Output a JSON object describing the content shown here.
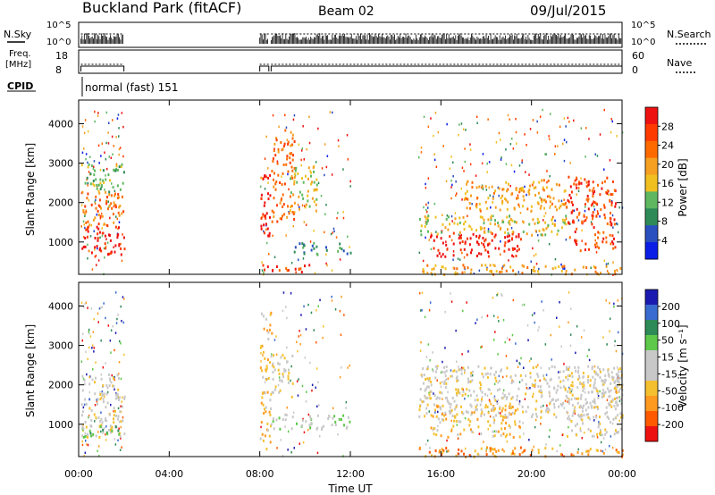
{
  "header": {
    "station": "Buckland Park (fitACF)",
    "beam": "Beam 02",
    "date": "09/Jul/2015"
  },
  "status_panels": {
    "nsky_label": "N.Sky",
    "nsky_ticks": [
      "10^5",
      "10^0"
    ],
    "nsearch_label": "N.Search",
    "freq_label_1": "Freq.",
    "freq_label_2": "[MHz]",
    "freq_ticks": [
      "18",
      "8"
    ],
    "nave_label": "Nave",
    "nave_ticks": [
      "60",
      "0"
    ],
    "cpid_label": "CPID",
    "cpid_text": "normal (fast) 151"
  },
  "colors": {
    "power_scale": [
      "#0a1ee6",
      "#2a4fbf",
      "#2e8b57",
      "#5fb860",
      "#f0c020",
      "#f5a020",
      "#ff6a00",
      "#ff3a00",
      "#ee1111"
    ],
    "velocity_scale": [
      "#ee1111",
      "#ff5a00",
      "#ff9a20",
      "#f5c030",
      "#c8c8c8",
      "#c8c8c8",
      "#5ec84a",
      "#2e8b57",
      "#3a6bd0",
      "#1a1ab0"
    ]
  },
  "chart_data": [
    {
      "type": "heatmap",
      "name": "power",
      "ylabel": "Slant Range [km]",
      "y_ticks": [
        "4000",
        "3000",
        "2000",
        "1000"
      ],
      "y_tick_values": [
        4000,
        3000,
        2000,
        1000
      ],
      "ylim": [
        180,
        4600
      ],
      "xlim": [
        0,
        24
      ],
      "colorbar_label": "Power [dB]",
      "colorbar_ticks": [
        "28",
        "24",
        "20",
        "16",
        "12",
        "8",
        "4"
      ],
      "colorbar_range": [
        0,
        32
      ],
      "blobs": [
        {
          "t0": 0.1,
          "t1": 2.0,
          "r0": 700,
          "r1": 1450,
          "level": 8
        },
        {
          "t0": 0.1,
          "t1": 2.0,
          "r0": 1450,
          "r1": 2300,
          "level": 6
        },
        {
          "t0": 0.1,
          "t1": 2.0,
          "r0": 2300,
          "r1": 3000,
          "level": 3
        },
        {
          "t0": 8.0,
          "t1": 8.5,
          "r0": 1000,
          "r1": 2800,
          "level": 8
        },
        {
          "t0": 8.5,
          "t1": 9.5,
          "r0": 1500,
          "r1": 3900,
          "level": 6
        },
        {
          "t0": 9.3,
          "t1": 10.5,
          "r0": 1800,
          "r1": 3000,
          "level": 4
        },
        {
          "t0": 9.5,
          "t1": 12.0,
          "r0": 700,
          "r1": 1000,
          "level": 2
        },
        {
          "t0": 8.0,
          "t1": 10.5,
          "r0": 250,
          "r1": 450,
          "level": 7
        },
        {
          "t0": 15.5,
          "t1": 19.5,
          "r0": 650,
          "r1": 1300,
          "level": 8
        },
        {
          "t0": 15.0,
          "t1": 21.5,
          "r0": 1200,
          "r1": 1700,
          "level": 4
        },
        {
          "t0": 17.0,
          "t1": 21.5,
          "r0": 1800,
          "r1": 2600,
          "level": 5
        },
        {
          "t0": 21.5,
          "t1": 23.7,
          "r0": 800,
          "r1": 2700,
          "level": 7
        },
        {
          "t0": 15.0,
          "t1": 24.0,
          "r0": 200,
          "r1": 450,
          "level": 5
        }
      ]
    },
    {
      "type": "heatmap",
      "name": "velocity",
      "ylabel": "Slant Range [km]",
      "y_ticks": [
        "4000",
        "3000",
        "2000",
        "1000"
      ],
      "y_tick_values": [
        4000,
        3000,
        2000,
        1000
      ],
      "ylim": [
        180,
        4600
      ],
      "xlim": [
        0,
        24
      ],
      "colorbar_label": "Velocity [m s⁻¹]",
      "colorbar_ticks": [
        "200",
        "100",
        "50",
        "15",
        "-15",
        "-50",
        "-100",
        "-200"
      ],
      "colorbar_range": [
        -250,
        250
      ],
      "blobs": [
        {
          "t0": 0.1,
          "t1": 2.0,
          "r0": 700,
          "r1": 2300,
          "level": 4
        },
        {
          "t0": 0.1,
          "t1": 2.0,
          "r0": 700,
          "r1": 1000,
          "level": 6
        },
        {
          "t0": 8.0,
          "t1": 8.5,
          "r0": 400,
          "r1": 3900,
          "level": 3
        },
        {
          "t0": 8.5,
          "t1": 9.5,
          "r0": 1700,
          "r1": 2800,
          "level": 4
        },
        {
          "t0": 8.5,
          "t1": 12.0,
          "r0": 900,
          "r1": 1300,
          "level": 5
        },
        {
          "t0": 15.5,
          "t1": 19.5,
          "r0": 700,
          "r1": 1500,
          "level": 3
        },
        {
          "t0": 15.0,
          "t1": 24.0,
          "r0": 1200,
          "r1": 2500,
          "level": 4
        },
        {
          "t0": 21.5,
          "t1": 24.0,
          "r0": 700,
          "r1": 2500,
          "level": 4
        },
        {
          "t0": 15.0,
          "t1": 24.0,
          "r0": 200,
          "r1": 450,
          "level": 2
        }
      ]
    }
  ],
  "x_axis": {
    "label": "Time UT",
    "ticks": [
      "00:00",
      "04:00",
      "08:00",
      "12:00",
      "16:00",
      "20:00",
      "00:00"
    ],
    "tick_values": [
      0,
      4,
      8,
      12,
      16,
      20,
      24
    ],
    "xlim": [
      0,
      24
    ]
  }
}
